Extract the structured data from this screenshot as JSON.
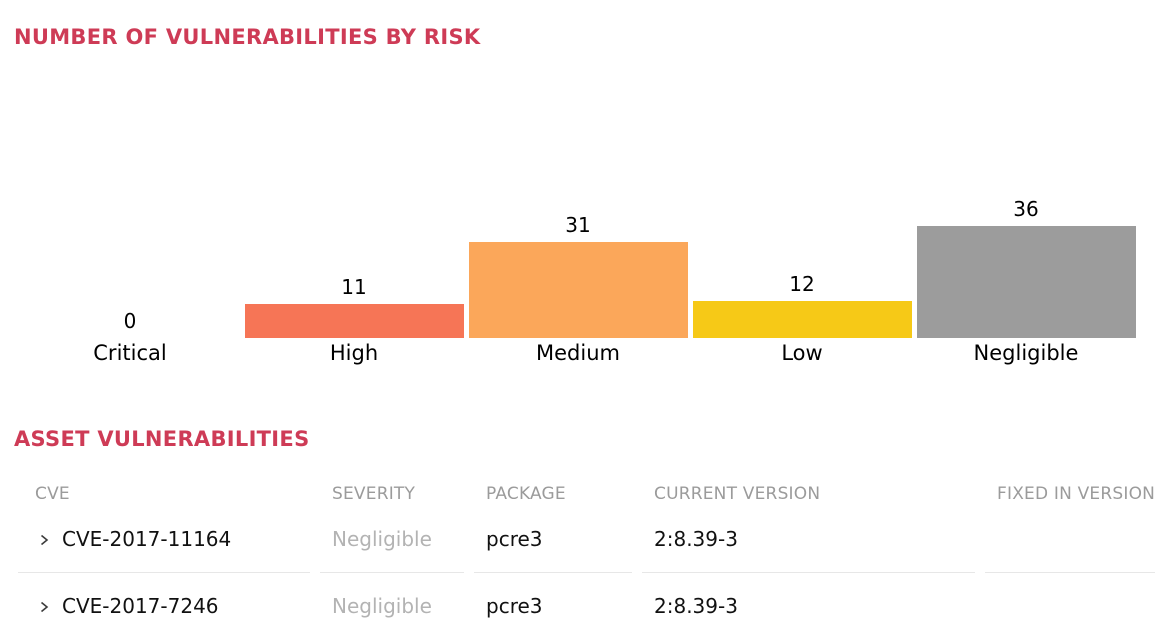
{
  "colors": {
    "accent": "#ce3b56",
    "table_header_gray": "#9b9b9b",
    "severity_text_gray": "#b3b3b3",
    "row_divider": "#e7e7e7",
    "bar_high": "#f67556",
    "bar_medium": "#fba75a",
    "bar_low": "#f6c917",
    "bar_negligible": "#9c9c9c"
  },
  "chart_section": {
    "title": "NUMBER OF VULNERABILITIES BY RISK"
  },
  "chart_data": {
    "type": "bar",
    "title": "NUMBER OF VULNERABILITIES BY RISK",
    "categories": [
      "Critical",
      "High",
      "Medium",
      "Low",
      "Negligible"
    ],
    "values": [
      0,
      11,
      31,
      12,
      36
    ],
    "bar_colors": [
      null,
      "#f67556",
      "#fba75a",
      "#f6c917",
      "#9c9c9c"
    ],
    "xlabel": "",
    "ylabel": "",
    "ylim": [
      0,
      36
    ],
    "grid": false,
    "axes_hidden": true,
    "legend": "none",
    "value_labels_position": "above-bars"
  },
  "table_section": {
    "title": "ASSET VULNERABILITIES",
    "columns": [
      "CVE",
      "SEVERITY",
      "PACKAGE",
      "CURRENT VERSION",
      "FIXED IN VERSION"
    ],
    "rows": [
      {
        "cve": "CVE-2017-11164",
        "severity": "Negligible",
        "package": "pcre3",
        "current_version": "2:8.39-3",
        "fixed_in_version": ""
      },
      {
        "cve": "CVE-2017-7246",
        "severity": "Negligible",
        "package": "pcre3",
        "current_version": "2:8.39-3",
        "fixed_in_version": ""
      }
    ]
  }
}
